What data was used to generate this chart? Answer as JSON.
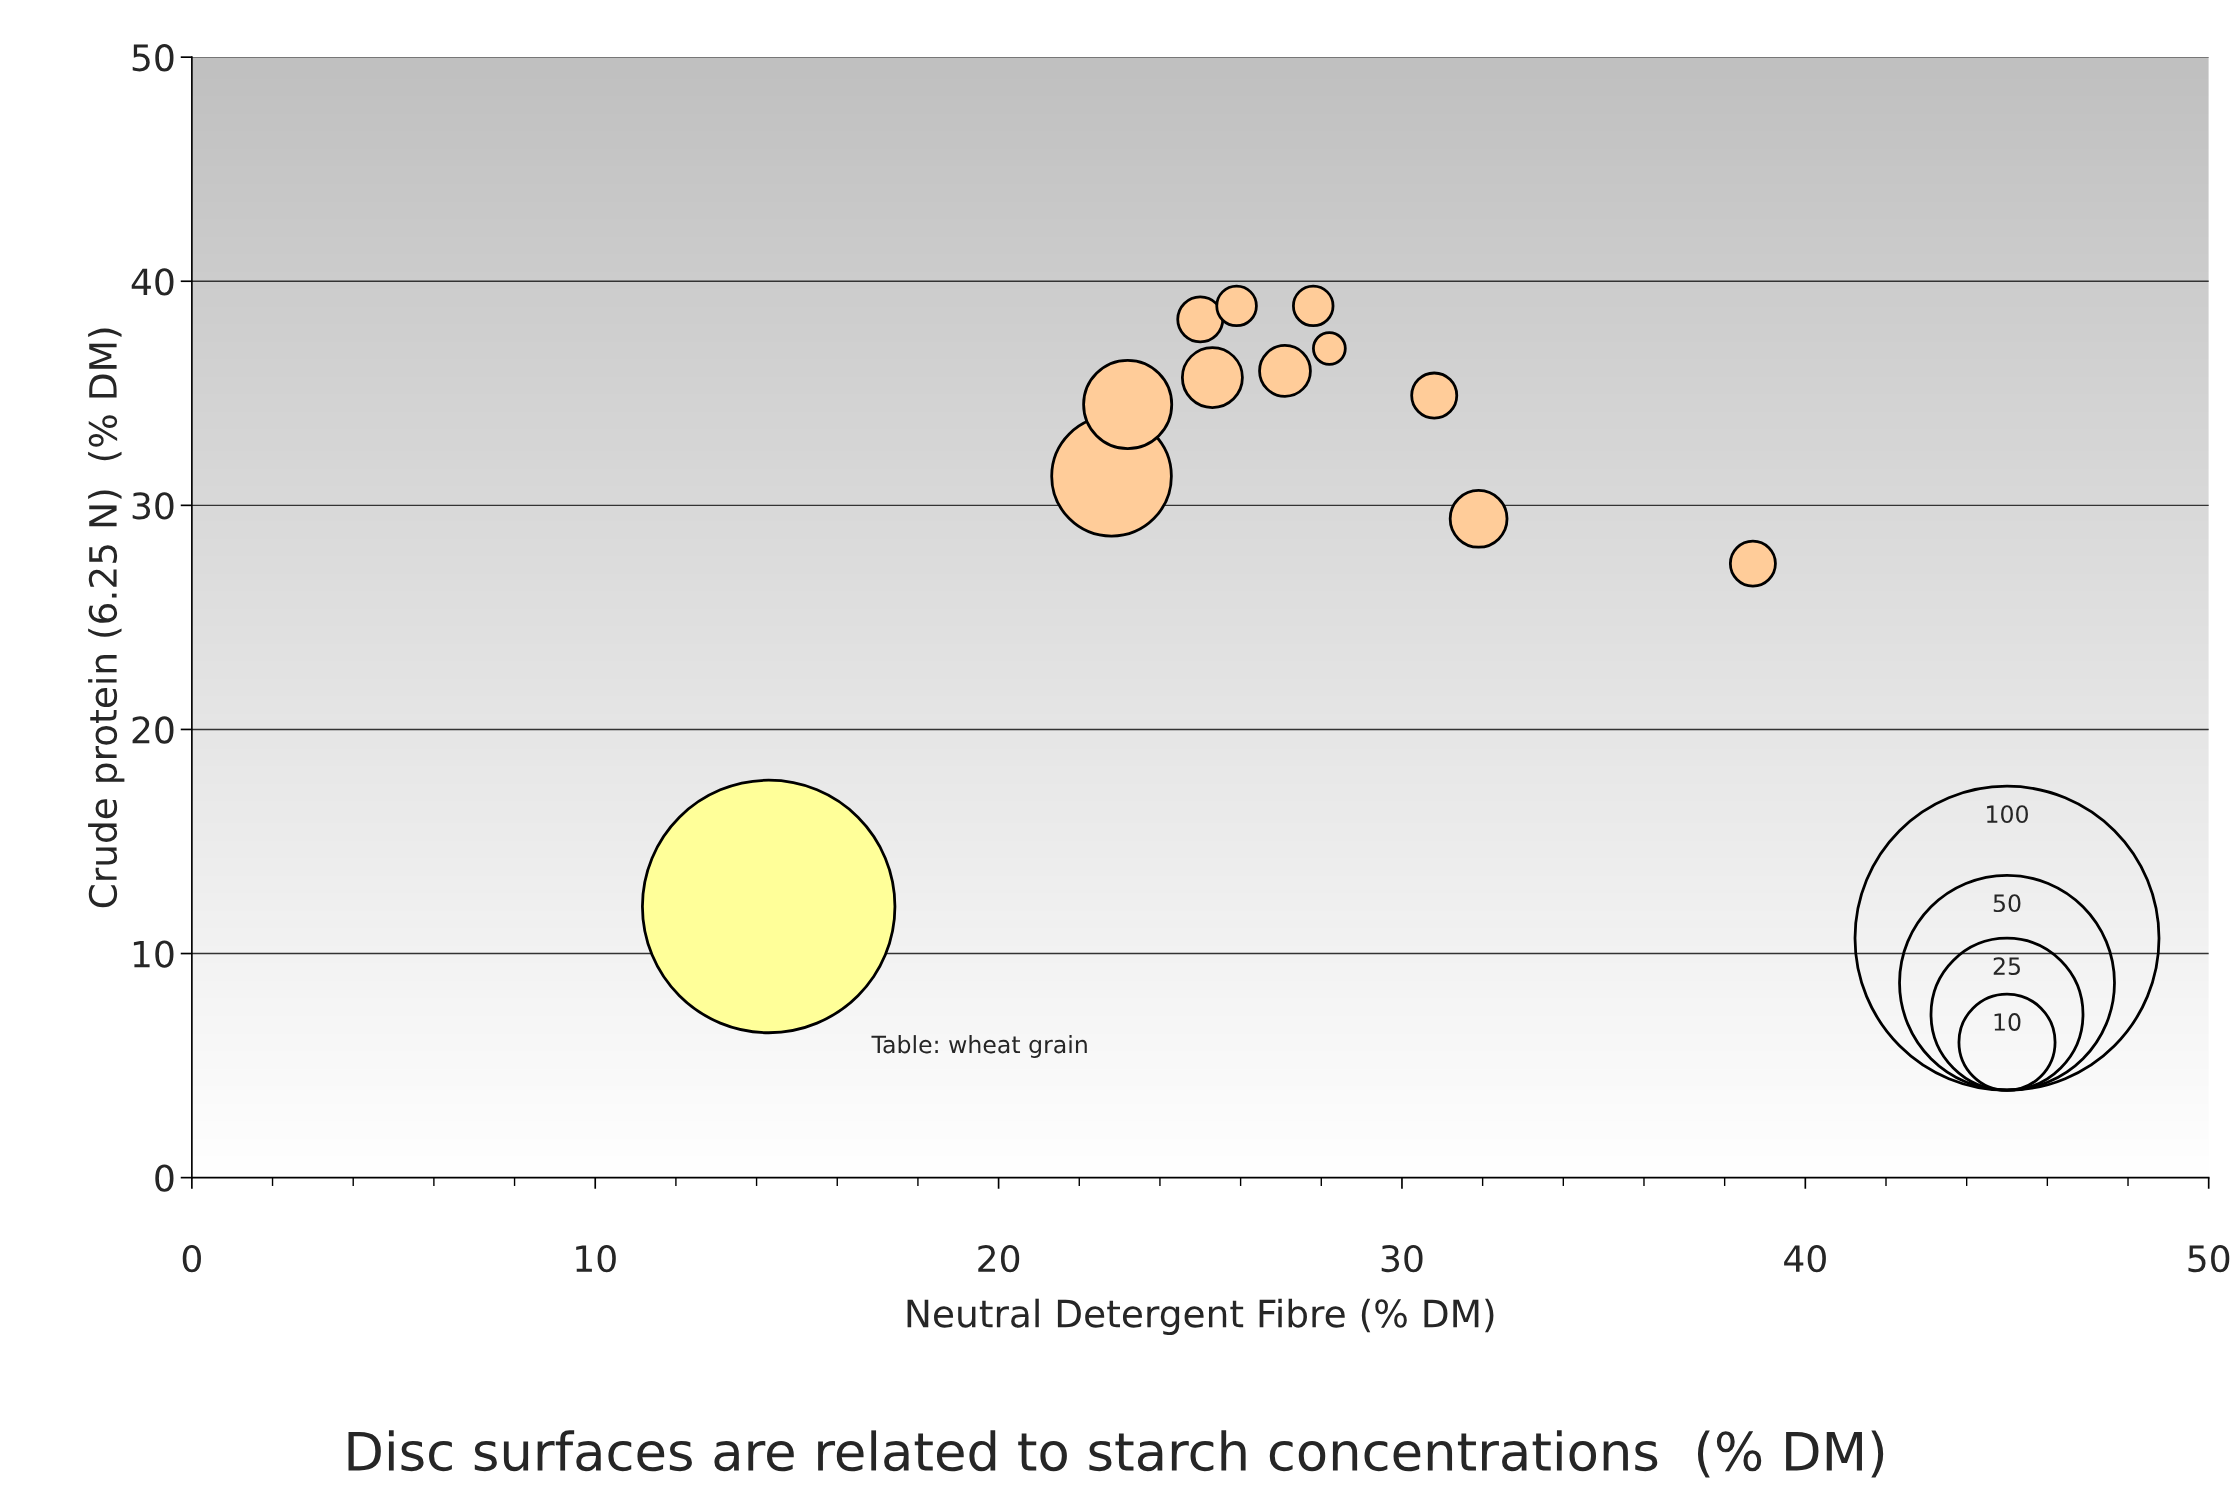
{
  "chart_data": {
    "type": "bubble",
    "xlabel": "Neutral Detergent Fibre (% DM)",
    "ylabel": "Crude protein (6.25 N)  (% DM)",
    "series": [
      {
        "color": "#ffff99",
        "x": [
          14.3
        ],
        "values": [
          12.1
        ],
        "sizes": [
          69
        ]
      },
      {
        "color": "#ffcc99",
        "x": [
          22.8,
          23.2,
          25.0,
          25.9,
          27.8,
          28.2,
          25.3,
          27.1,
          30.8,
          31.9,
          38.7
        ],
        "values": [
          31.3,
          34.5,
          38.3,
          38.9,
          38.9,
          37.0,
          35.7,
          36.0,
          34.9,
          29.4,
          27.4
        ],
        "sizes": [
          15.5,
          8.4,
          2.2,
          1.7,
          1.7,
          1.1,
          3.9,
          2.8,
          2.2,
          3.5,
          2.2
        ]
      }
    ],
    "size_legend": [
      100,
      50,
      25,
      10
    ],
    "xlim": [
      0,
      50
    ],
    "ylim": [
      0,
      50
    ],
    "xticks": [
      0,
      10,
      20,
      30,
      40,
      50
    ],
    "yticks": [
      0,
      10,
      20,
      30,
      40,
      50
    ],
    "grid": "y",
    "annotations": [
      "Table: wheat grain",
      "Disc surfaces are related to starch concentrations  (% DM)"
    ]
  }
}
